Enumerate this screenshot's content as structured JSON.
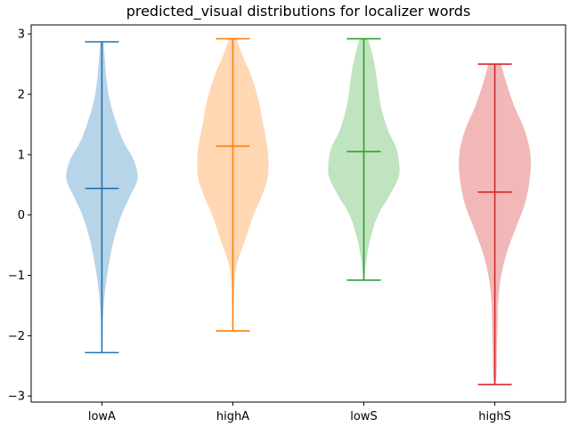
{
  "chart_data": {
    "type": "violin",
    "title": "predicted_visual distributions for localizer words",
    "xlabel": "",
    "ylabel": "",
    "categories": [
      "lowA",
      "highA",
      "lowS",
      "highS"
    ],
    "ylim": [
      -3.1,
      3.15
    ],
    "yticks": [
      -3,
      -2,
      -1,
      0,
      1,
      2,
      3
    ],
    "ytick_labels": [
      "−3",
      "−2",
      "−1",
      "0",
      "1",
      "2",
      "3"
    ],
    "grid": false,
    "colors": [
      "#1f77b4",
      "#ff7f0e",
      "#2ca02c",
      "#d62728"
    ],
    "fill_colors": [
      "#b8d4e9",
      "#ffd7b3",
      "#bfe4bf",
      "#f2b8b8"
    ],
    "series": [
      {
        "category": "lowA",
        "min": -2.28,
        "max": 2.87,
        "median": 0.44,
        "density": [
          [
            -2.28,
            0.01
          ],
          [
            -2.0,
            0.02
          ],
          [
            -1.6,
            0.04
          ],
          [
            -1.2,
            0.1
          ],
          [
            -0.8,
            0.2
          ],
          [
            -0.4,
            0.34
          ],
          [
            0.0,
            0.55
          ],
          [
            0.3,
            0.78
          ],
          [
            0.6,
            1.0
          ],
          [
            0.9,
            0.9
          ],
          [
            1.2,
            0.62
          ],
          [
            1.5,
            0.42
          ],
          [
            1.9,
            0.22
          ],
          [
            2.3,
            0.12
          ],
          [
            2.6,
            0.08
          ],
          [
            2.87,
            0.05
          ]
        ]
      },
      {
        "category": "highA",
        "min": -1.92,
        "max": 2.92,
        "median": 1.14,
        "density": [
          [
            -1.92,
            0.01
          ],
          [
            -1.5,
            0.02
          ],
          [
            -1.1,
            0.05
          ],
          [
            -0.8,
            0.12
          ],
          [
            -0.4,
            0.35
          ],
          [
            0.0,
            0.58
          ],
          [
            0.3,
            0.8
          ],
          [
            0.6,
            0.97
          ],
          [
            0.9,
            1.0
          ],
          [
            1.2,
            0.95
          ],
          [
            1.5,
            0.85
          ],
          [
            1.9,
            0.72
          ],
          [
            2.3,
            0.52
          ],
          [
            2.6,
            0.3
          ],
          [
            2.92,
            0.1
          ]
        ]
      },
      {
        "category": "lowS",
        "min": -1.08,
        "max": 2.92,
        "median": 1.05,
        "density": [
          [
            -1.08,
            0.01
          ],
          [
            -0.8,
            0.06
          ],
          [
            -0.4,
            0.18
          ],
          [
            0.0,
            0.4
          ],
          [
            0.3,
            0.7
          ],
          [
            0.6,
            0.96
          ],
          [
            0.8,
            1.0
          ],
          [
            1.1,
            0.92
          ],
          [
            1.4,
            0.68
          ],
          [
            1.8,
            0.48
          ],
          [
            2.2,
            0.38
          ],
          [
            2.5,
            0.3
          ],
          [
            2.75,
            0.2
          ],
          [
            2.92,
            0.12
          ]
        ]
      },
      {
        "category": "highS",
        "min": -2.81,
        "max": 2.5,
        "median": 0.38,
        "density": [
          [
            -2.81,
            0.02
          ],
          [
            -2.6,
            0.05
          ],
          [
            -2.2,
            0.06
          ],
          [
            -1.8,
            0.08
          ],
          [
            -1.4,
            0.1
          ],
          [
            -1.0,
            0.18
          ],
          [
            -0.6,
            0.35
          ],
          [
            -0.2,
            0.6
          ],
          [
            0.2,
            0.85
          ],
          [
            0.6,
            0.98
          ],
          [
            1.0,
            1.0
          ],
          [
            1.4,
            0.84
          ],
          [
            1.8,
            0.55
          ],
          [
            2.2,
            0.32
          ],
          [
            2.5,
            0.18
          ]
        ]
      }
    ]
  }
}
